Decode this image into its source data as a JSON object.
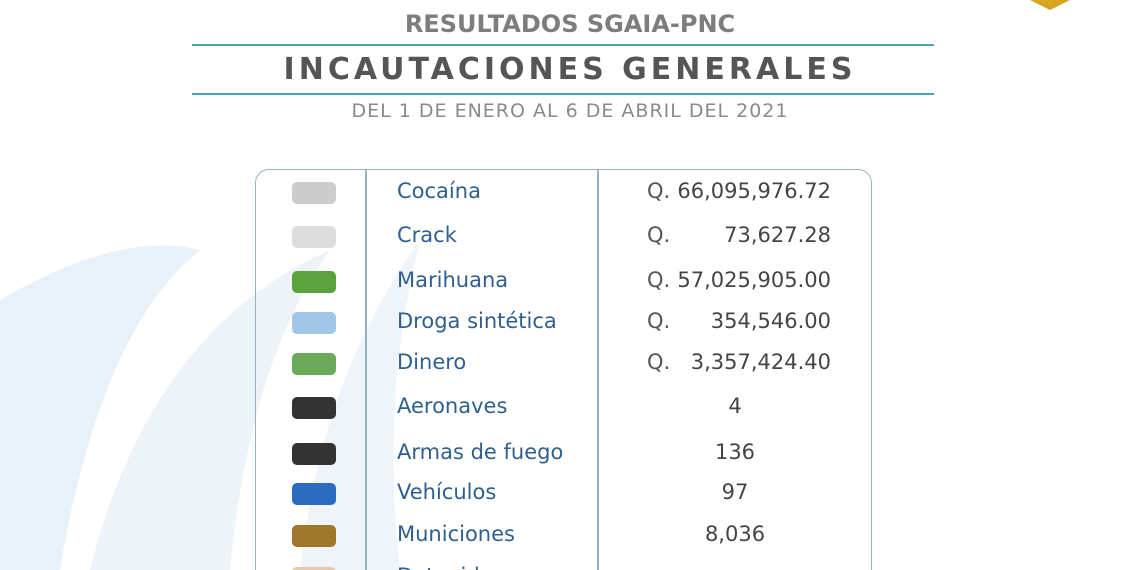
{
  "header": {
    "title": "RESULTADOS  SGAIA-PNC",
    "heading": "INCAUTACIONES GENERALES",
    "period": "DEL 1 DE ENERO  AL  6 DE ABRIL DEL 2021"
  },
  "table": {
    "rows": [
      {
        "label": "Cocaína",
        "currency": "Q.",
        "amount": "66,095,976.72"
      },
      {
        "label": "Crack",
        "currency": "Q.",
        "amount": "73,627.28"
      },
      {
        "label": "Marihuana",
        "currency": "Q.",
        "amount": "57,025,905.00"
      },
      {
        "label": "Droga sintética",
        "currency": "Q.",
        "amount": "354,546.00"
      },
      {
        "label": "Dinero",
        "currency": "Q.",
        "amount": "3,357,424.40"
      },
      {
        "label": "Aeronaves",
        "amount": "4"
      },
      {
        "label": "Armas de fuego",
        "amount": "136"
      },
      {
        "label": "Vehículos",
        "amount": "97"
      },
      {
        "label": "Municiones",
        "amount": "8,036"
      },
      {
        "label": "Detenidos"
      }
    ]
  }
}
